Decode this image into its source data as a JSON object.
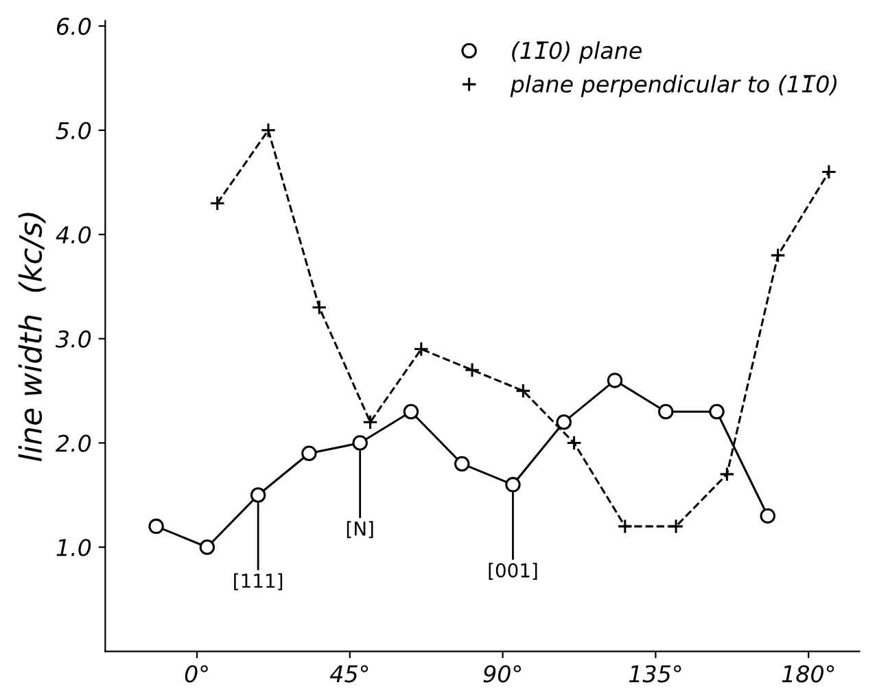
{
  "chart_data": {
    "type": "line",
    "ylabel": "line width  (kc/s)",
    "xlim": [
      -27,
      195
    ],
    "ylim": [
      0,
      6.05
    ],
    "xticks": [
      {
        "value": 0,
        "label": "0°"
      },
      {
        "value": 45,
        "label": "45°"
      },
      {
        "value": 90,
        "label": "90°"
      },
      {
        "value": 135,
        "label": "135°"
      },
      {
        "value": 180,
        "label": "180°"
      }
    ],
    "yticks": [
      {
        "value": 1,
        "label": "1.0"
      },
      {
        "value": 2,
        "label": "2.0"
      },
      {
        "value": 3,
        "label": "3.0"
      },
      {
        "value": 4,
        "label": "4.0"
      },
      {
        "value": 5,
        "label": "5.0"
      },
      {
        "value": 6,
        "label": "6.0"
      }
    ],
    "series": [
      {
        "name": "(11̅0) plane",
        "color": "#000000",
        "marker": "circle",
        "line_style": "solid",
        "x": [
          -12,
          3,
          18,
          33,
          48,
          63,
          78,
          93,
          108,
          123,
          138,
          153,
          168
        ],
        "values": [
          1.2,
          1.0,
          1.5,
          1.9,
          2.0,
          2.3,
          1.8,
          1.6,
          2.2,
          2.6,
          2.3,
          2.3,
          1.3
        ]
      },
      {
        "name": "plane perpendicular to (11̅0)",
        "color": "#000000",
        "marker": "cross",
        "line_style": "dashed",
        "x": [
          6,
          21,
          36,
          51,
          66,
          81,
          96,
          111,
          126,
          141,
          156,
          171,
          186
        ],
        "values": [
          4.3,
          5.0,
          3.3,
          2.2,
          2.9,
          2.7,
          2.5,
          2.0,
          1.2,
          1.2,
          1.7,
          3.8,
          4.6
        ]
      }
    ],
    "annotations": [
      {
        "text": "[111]",
        "x": 18,
        "y": 1.5
      },
      {
        "text": "[N]",
        "x": 48,
        "y": 2.0
      },
      {
        "text": "[001]",
        "x": 93,
        "y": 1.6
      }
    ],
    "legend": "top right",
    "grid": false
  }
}
